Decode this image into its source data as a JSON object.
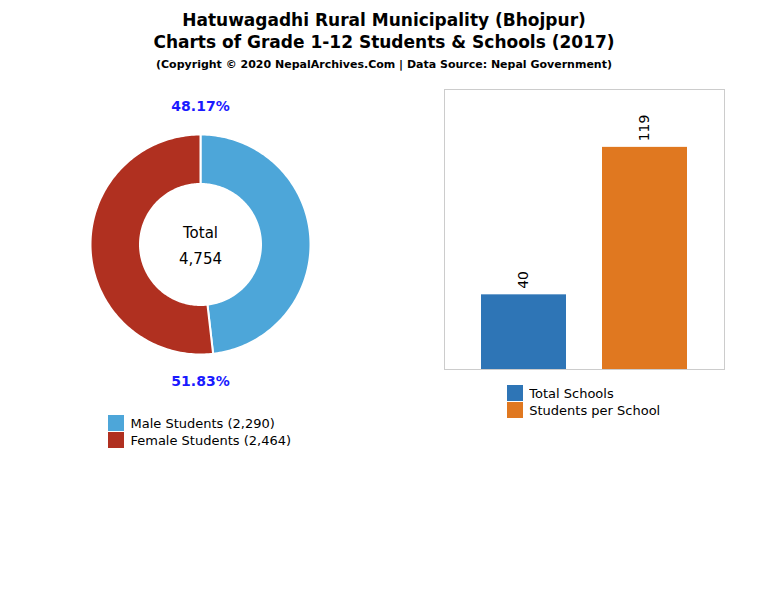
{
  "chart_data": [
    {
      "type": "pie",
      "title": "Hatuwagadhi Rural Municipality (Bhojpur)\nCharts of Grade 1-12 Students & Schools (2017)",
      "subtitle": "(Copyright © 2020 NepalArchives.Com | Data Source: Nepal Government)",
      "categories": [
        "Male Students (2,290)",
        "Female Students (2,464)"
      ],
      "values": [
        48.17,
        51.83
      ],
      "value_labels": [
        "48.17%",
        "51.83%"
      ],
      "colors": [
        "#4da6d9",
        "#b03020"
      ],
      "data_labels": true,
      "annotations": [
        "Total",
        "4,754"
      ],
      "legend": "bottom"
    },
    {
      "type": "bar",
      "categories": [
        "Total Schools",
        "Students per School"
      ],
      "values": [
        40,
        119
      ],
      "colors": [
        "#2e75b6",
        "#e07820"
      ],
      "ylim": [
        0,
        150
      ],
      "data_labels": true,
      "tick_labels": false,
      "legend": "bottom"
    }
  ]
}
